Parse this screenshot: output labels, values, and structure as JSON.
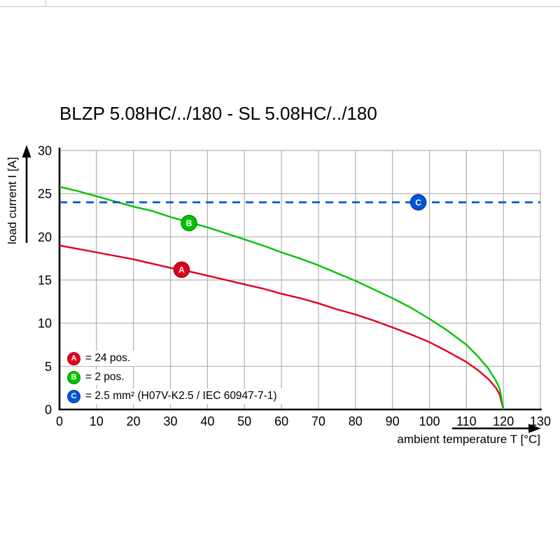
{
  "chart_data": {
    "type": "line",
    "title": "BLZP 5.08HC/../180 - SL 5.08HC/../180",
    "xlabel": "ambient temperature T [°C]",
    "ylabel": "load current I [A]",
    "xlim": [
      0,
      130
    ],
    "ylim": [
      0,
      30
    ],
    "x_ticks": [
      0,
      10,
      20,
      30,
      40,
      50,
      60,
      70,
      80,
      90,
      100,
      110,
      120,
      130
    ],
    "y_ticks": [
      0,
      5,
      10,
      15,
      20,
      25,
      30
    ],
    "grid": true,
    "grid_color": "#b0b0b0",
    "axis_color": "#000000",
    "legend_position": "inside bottom-left",
    "series": [
      {
        "name": "A",
        "label": "= 24 pos.",
        "color": "#e2001a",
        "edge": "#a50013",
        "style": "solid",
        "marker": {
          "x": 33,
          "y": 16.2
        },
        "points": [
          [
            0,
            19.0
          ],
          [
            5,
            18.6
          ],
          [
            10,
            18.2
          ],
          [
            15,
            17.8
          ],
          [
            20,
            17.4
          ],
          [
            25,
            16.9
          ],
          [
            30,
            16.4
          ],
          [
            35,
            16.0
          ],
          [
            40,
            15.5
          ],
          [
            45,
            15.0
          ],
          [
            50,
            14.5
          ],
          [
            55,
            14.0
          ],
          [
            60,
            13.4
          ],
          [
            65,
            12.9
          ],
          [
            70,
            12.3
          ],
          [
            75,
            11.6
          ],
          [
            80,
            11.0
          ],
          [
            85,
            10.3
          ],
          [
            90,
            9.5
          ],
          [
            95,
            8.7
          ],
          [
            100,
            7.8
          ],
          [
            105,
            6.7
          ],
          [
            110,
            5.5
          ],
          [
            113,
            4.6
          ],
          [
            116,
            3.5
          ],
          [
            118,
            2.5
          ],
          [
            119,
            1.7
          ],
          [
            120,
            0
          ]
        ]
      },
      {
        "name": "B",
        "label": "= 2 pos.",
        "color": "#00c300",
        "edge": "#008f00",
        "style": "solid",
        "marker": {
          "x": 35,
          "y": 21.6
        },
        "points": [
          [
            0,
            25.8
          ],
          [
            5,
            25.3
          ],
          [
            10,
            24.7
          ],
          [
            15,
            24.1
          ],
          [
            20,
            23.5
          ],
          [
            25,
            23.0
          ],
          [
            30,
            22.3
          ],
          [
            35,
            21.7
          ],
          [
            40,
            21.1
          ],
          [
            45,
            20.4
          ],
          [
            50,
            19.7
          ],
          [
            55,
            19.0
          ],
          [
            60,
            18.2
          ],
          [
            65,
            17.5
          ],
          [
            70,
            16.7
          ],
          [
            75,
            15.8
          ],
          [
            80,
            14.9
          ],
          [
            85,
            13.9
          ],
          [
            90,
            12.9
          ],
          [
            95,
            11.8
          ],
          [
            100,
            10.5
          ],
          [
            105,
            9.1
          ],
          [
            110,
            7.5
          ],
          [
            113,
            6.2
          ],
          [
            116,
            4.7
          ],
          [
            118,
            3.3
          ],
          [
            119,
            2.4
          ],
          [
            120,
            0
          ]
        ]
      },
      {
        "name": "C",
        "label": "= 2.5 mm² (H07V-K2.5 / IEC 60947-7-1)",
        "color": "#0055d4",
        "edge": "#003c96",
        "style": "dashed",
        "marker": {
          "x": 97,
          "y": 24
        },
        "points": [
          [
            0,
            24
          ],
          [
            130,
            24
          ]
        ]
      }
    ]
  }
}
